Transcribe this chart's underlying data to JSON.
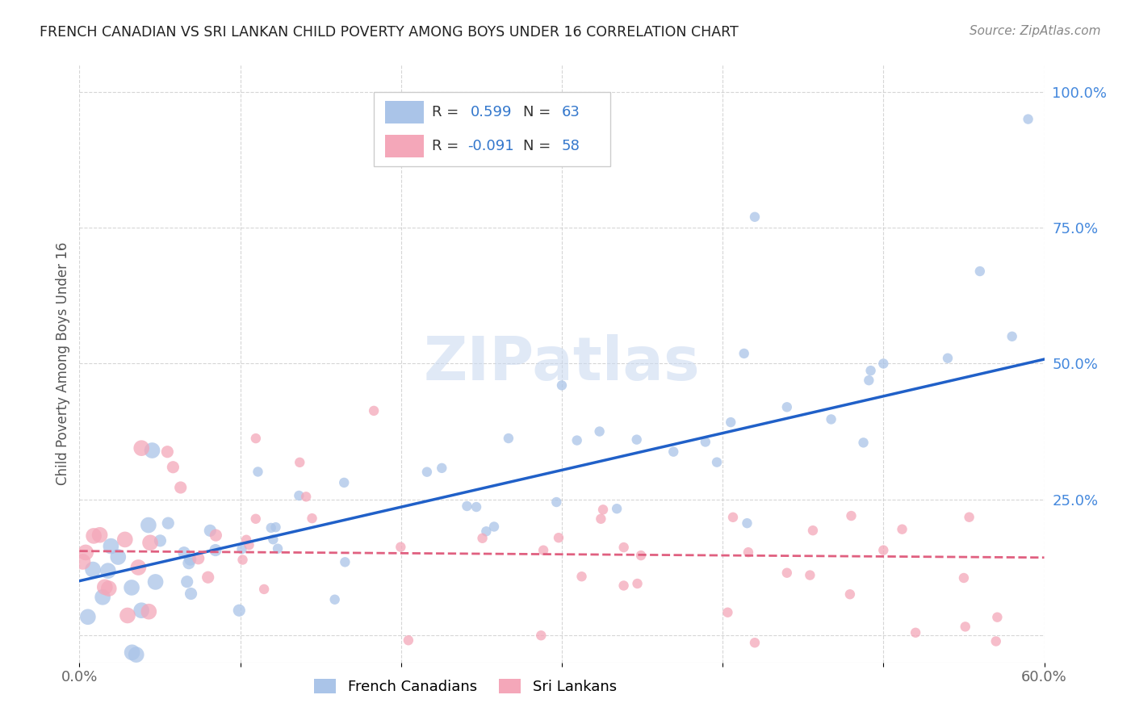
{
  "title": "FRENCH CANADIAN VS SRI LANKAN CHILD POVERTY AMONG BOYS UNDER 16 CORRELATION CHART",
  "source": "Source: ZipAtlas.com",
  "ylabel": "Child Poverty Among Boys Under 16",
  "xlim": [
    0.0,
    0.6
  ],
  "ylim": [
    -0.05,
    1.05
  ],
  "fc_color": "#aac4e8",
  "sl_color": "#f4a7b9",
  "fc_line_color": "#2060c8",
  "sl_line_color": "#e06080",
  "background_color": "#ffffff",
  "watermark": "ZIPatlas",
  "right_tick_color": "#4488dd",
  "title_color": "#222222",
  "source_color": "#888888",
  "ylabel_color": "#555555",
  "tick_color": "#666666",
  "fc_line_intercept": 0.1,
  "fc_line_slope": 0.68,
  "sl_line_intercept": 0.155,
  "sl_line_slope": -0.02
}
